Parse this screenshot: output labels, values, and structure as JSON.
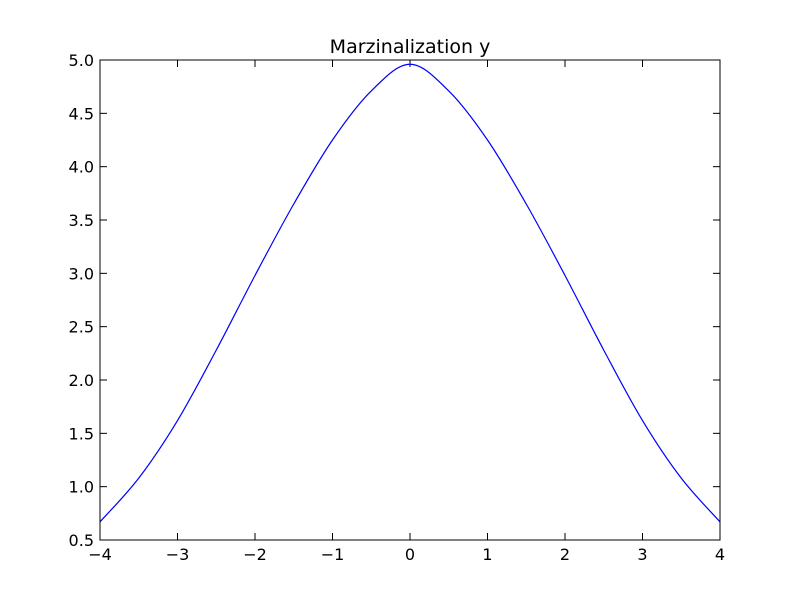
{
  "chart_data": {
    "type": "line",
    "title": "Marzinalization y",
    "xlabel": "",
    "ylabel": "",
    "xlim": [
      -4,
      4
    ],
    "ylim": [
      0.5,
      5.0
    ],
    "x_ticks": [
      -4,
      -3,
      -2,
      -1,
      0,
      1,
      2,
      3,
      4
    ],
    "x_tick_labels": [
      "−4",
      "−3",
      "−2",
      "−1",
      "0",
      "1",
      "2",
      "3",
      "4"
    ],
    "y_ticks": [
      0.5,
      1.0,
      1.5,
      2.0,
      2.5,
      3.0,
      3.5,
      4.0,
      4.5,
      5.0
    ],
    "y_tick_labels": [
      "0.5",
      "1.0",
      "1.5",
      "2.0",
      "2.5",
      "3.0",
      "3.5",
      "4.0",
      "4.5",
      "5.0"
    ],
    "grid": false,
    "legend": "none",
    "series": [
      {
        "color": "#0000ff",
        "x": [
          -4.0,
          -3.5,
          -3.0,
          -2.5,
          -2.0,
          -1.5,
          -1.0,
          -0.5,
          0.0,
          0.5,
          1.0,
          1.5,
          2.0,
          2.5,
          3.0,
          3.5,
          4.0
        ],
        "y": [
          0.67,
          1.08,
          1.62,
          2.28,
          2.98,
          3.65,
          4.25,
          4.71,
          4.96,
          4.71,
          4.25,
          3.65,
          2.98,
          2.28,
          1.62,
          1.08,
          0.67
        ]
      }
    ]
  }
}
